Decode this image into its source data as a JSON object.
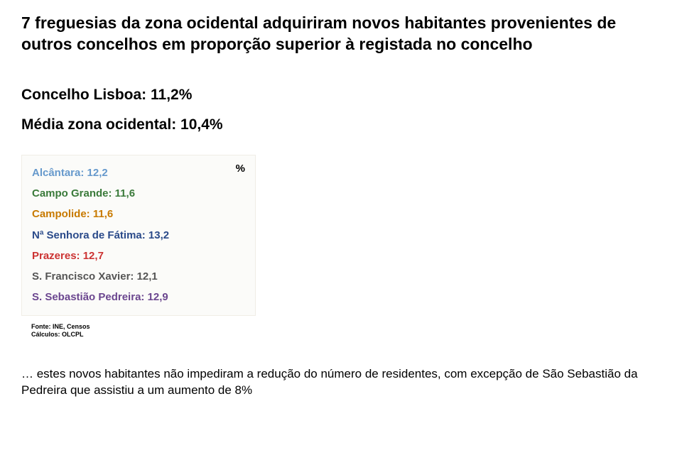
{
  "title": "7 freguesias da zona ocidental adquiriram novos habitantes provenientes de outros concelhos em proporção superior à registada no concelho",
  "sub1": "Concelho Lisboa: 11,2%",
  "sub2": "Média zona ocidental: 10,4%",
  "pct_symbol": "%",
  "items": [
    {
      "label": "Alcântara: 12,2",
      "color": "#6699cc"
    },
    {
      "label": "Campo Grande: 11,6",
      "color": "#3a7a3a"
    },
    {
      "label": "Campolide: 11,6",
      "color": "#c87a00"
    },
    {
      "label": "Nª Senhora de Fátima: 13,2",
      "color": "#2a4a8a"
    },
    {
      "label": "Prazeres: 12,7",
      "color": "#cc3333"
    },
    {
      "label": "S. Francisco Xavier: 12,1",
      "color": "#555555"
    },
    {
      "label": "S. Sebastião Pedreira: 12,9",
      "color": "#6b468f"
    }
  ],
  "source_line1": "Fonte: INE, Censos",
  "source_line2": "Cálculos: OLCPL",
  "conclusion": "… estes novos habitantes não impediram a redução do número de residentes, com excepção de São Sebastião da Pedreira que assistiu a um aumento de 8%"
}
